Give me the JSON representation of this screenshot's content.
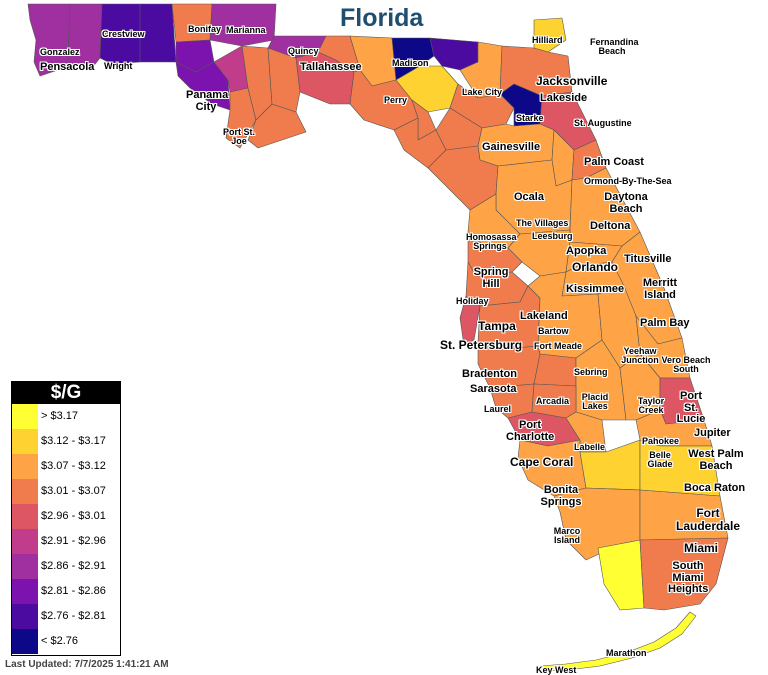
{
  "title": "Florida",
  "legend": {
    "header": "$/G",
    "items": [
      {
        "label": "> $3.17",
        "color": "#ffff33"
      },
      {
        "label": "$3.12 - $3.17",
        "color": "#fed230"
      },
      {
        "label": "$3.07 - $3.12",
        "color": "#fea446"
      },
      {
        "label": "$3.01 - $3.07",
        "color": "#f07c4e"
      },
      {
        "label": "$2.96 - $3.01",
        "color": "#dc5664"
      },
      {
        "label": "$2.91 - $2.96",
        "color": "#c13c8a"
      },
      {
        "label": "$2.86 - $2.91",
        "color": "#a02fa0"
      },
      {
        "label": "$2.81 - $2.86",
        "color": "#7d13ae"
      },
      {
        "label": "$2.76 - $2.81",
        "color": "#4b0aa0"
      },
      {
        "label": "< $2.76",
        "color": "#0d0887"
      }
    ]
  },
  "last_updated": "Last Updated: 7/7/2025 1:41:21 AM",
  "cities": [
    {
      "id": "pensacola",
      "name": "Pensacola"
    },
    {
      "id": "gonzalez",
      "name": "Gonzalez"
    },
    {
      "id": "crestview",
      "name": "Crestview"
    },
    {
      "id": "wright",
      "name": "Wright"
    },
    {
      "id": "bonifay",
      "name": "Bonifay"
    },
    {
      "id": "marianna",
      "name": "Marianna"
    },
    {
      "id": "quincy",
      "name": "Quincy"
    },
    {
      "id": "tallahassee",
      "name": "Tallahassee"
    },
    {
      "id": "panama_city",
      "name": "Panama City"
    },
    {
      "id": "port_st_joe",
      "name": "Port St. Joe"
    },
    {
      "id": "madison",
      "name": "Madison"
    },
    {
      "id": "perry",
      "name": "Perry"
    },
    {
      "id": "lake_city",
      "name": "Lake City"
    },
    {
      "id": "hilliard",
      "name": "Hilliard"
    },
    {
      "id": "fernandina_beach",
      "name": "Fernandina Beach"
    },
    {
      "id": "jacksonville",
      "name": "Jacksonville"
    },
    {
      "id": "lakeside",
      "name": "Lakeside"
    },
    {
      "id": "starke",
      "name": "Starke"
    },
    {
      "id": "st_augustine",
      "name": "St. Augustine"
    },
    {
      "id": "gainesville",
      "name": "Gainesville"
    },
    {
      "id": "palm_coast",
      "name": "Palm Coast"
    },
    {
      "id": "ormond",
      "name": "Ormond-By-The-Sea"
    },
    {
      "id": "daytona",
      "name": "Daytona Beach"
    },
    {
      "id": "ocala",
      "name": "Ocala"
    },
    {
      "id": "villages",
      "name": "The Villages"
    },
    {
      "id": "leesburg",
      "name": "Leesburg"
    },
    {
      "id": "deltona",
      "name": "Deltona"
    },
    {
      "id": "homosassa",
      "name": "Homosassa Springs"
    },
    {
      "id": "apopka",
      "name": "Apopka"
    },
    {
      "id": "orlando",
      "name": "Orlando"
    },
    {
      "id": "titusville",
      "name": "Titusville"
    },
    {
      "id": "spring_hill",
      "name": "Spring Hill"
    },
    {
      "id": "kissimmee",
      "name": "Kissimmee"
    },
    {
      "id": "merritt_island",
      "name": "Merritt Island"
    },
    {
      "id": "holiday",
      "name": "Holiday"
    },
    {
      "id": "lakeland",
      "name": "Lakeland"
    },
    {
      "id": "tampa",
      "name": "Tampa"
    },
    {
      "id": "palm_bay",
      "name": "Palm Bay"
    },
    {
      "id": "bartow",
      "name": "Bartow"
    },
    {
      "id": "st_petersburg",
      "name": "St. Petersburg"
    },
    {
      "id": "fort_meade",
      "name": "Fort Meade"
    },
    {
      "id": "yeehaw",
      "name": "Yeehaw Junction"
    },
    {
      "id": "vero_beach",
      "name": "Vero Beach South"
    },
    {
      "id": "bradenton",
      "name": "Bradenton"
    },
    {
      "id": "sebring",
      "name": "Sebring"
    },
    {
      "id": "sarasota",
      "name": "Sarasota"
    },
    {
      "id": "arcadia",
      "name": "Arcadia"
    },
    {
      "id": "placid_lakes",
      "name": "Placid Lakes"
    },
    {
      "id": "taylor_creek",
      "name": "Taylor Creek"
    },
    {
      "id": "port_st_lucie",
      "name": "Port St. Lucie"
    },
    {
      "id": "laurel",
      "name": "Laurel"
    },
    {
      "id": "port_charlotte",
      "name": "Port Charlotte"
    },
    {
      "id": "jupiter",
      "name": "Jupiter"
    },
    {
      "id": "labelle",
      "name": "Labelle"
    },
    {
      "id": "pahokee",
      "name": "Pahokee"
    },
    {
      "id": "belle_glade",
      "name": "Belle Glade"
    },
    {
      "id": "west_palm",
      "name": "West Palm Beach"
    },
    {
      "id": "cape_coral",
      "name": "Cape Coral"
    },
    {
      "id": "boca_raton",
      "name": "Boca Raton"
    },
    {
      "id": "bonita_springs",
      "name": "Bonita Springs"
    },
    {
      "id": "fort_lauderdale",
      "name": "Fort Lauderdale"
    },
    {
      "id": "marco_island",
      "name": "Marco Island"
    },
    {
      "id": "miami",
      "name": "Miami"
    },
    {
      "id": "south_miami_heights",
      "name": "South Miami Heights"
    },
    {
      "id": "marathon",
      "name": "Marathon"
    },
    {
      "id": "key_west",
      "name": "Key West"
    }
  ]
}
